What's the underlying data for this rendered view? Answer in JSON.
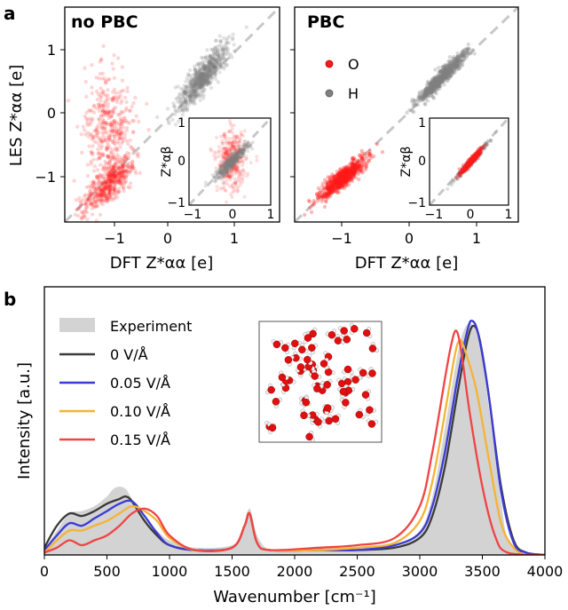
{
  "figure": {
    "panel_a_label": "a",
    "panel_b_label": "b"
  },
  "colors": {
    "O": "#ff1a1a",
    "H": "#808080",
    "diag": "#c8c8c8"
  },
  "chart_data": [
    {
      "id": "a-left",
      "type": "scatter",
      "title": "no PBC",
      "xlabel": "DFT Z*αα [e]",
      "ylabel": "LES Z*αα [e]",
      "xlim": [
        -1.6,
        1.6
      ],
      "ylim": [
        -1.6,
        1.6
      ],
      "xticks": [
        "−1",
        "0",
        "1"
      ],
      "yticks": [
        "−1",
        "0",
        "1"
      ],
      "series": [
        {
          "color": "#ff1a1a",
          "note": "O cloud: x≈-0.9 (−1.3..−0.6), y spans −1.5..0.9"
        },
        {
          "color": "#808080",
          "note": "H cloud: x 0.1..0.9, y 0.1..1.1"
        }
      ],
      "inset": {
        "xlabel": "",
        "ylabel": "Z*αβ",
        "xlim": [
          -1,
          1
        ],
        "ylim": [
          -1,
          1
        ],
        "xticks": [
          "−1",
          "0",
          "1"
        ],
        "yticks": [
          "−1",
          "0",
          "1"
        ]
      }
    },
    {
      "id": "a-right",
      "type": "scatter",
      "title": "PBC",
      "xlabel": "DFT Z*αα [e]",
      "ylabel": "",
      "xlim": [
        -1.6,
        1.6
      ],
      "ylim": [
        -1.6,
        1.6
      ],
      "xticks": [
        "−1",
        "0",
        "1"
      ],
      "legend": [
        {
          "label": "O",
          "color": "#ff1a1a"
        },
        {
          "label": "H",
          "color": "#808080"
        }
      ],
      "legend_position": "upper-left",
      "series": [
        {
          "name": "O",
          "color": "#ff1a1a",
          "note": "tight along diagonal, x −1.3..−0.6"
        },
        {
          "name": "H",
          "color": "#808080",
          "note": "tight along diagonal, x 0.2..0.9"
        }
      ],
      "inset": {
        "xlabel": "",
        "ylabel": "Z*αβ",
        "xlim": [
          -1,
          1
        ],
        "ylim": [
          -1,
          1
        ],
        "xticks": [
          "−1",
          "0",
          "1"
        ],
        "yticks": [
          "−1",
          "0",
          "1"
        ]
      }
    },
    {
      "id": "b",
      "type": "line",
      "xlabel": "Wavenumber [cm⁻¹]",
      "ylabel": "Intensity [a.u.]",
      "xlim": [
        0,
        4000
      ],
      "ylim": [
        0,
        1.1
      ],
      "xticks": [
        "0",
        "500",
        "1000",
        "1500",
        "2000",
        "2500",
        "3000",
        "3500",
        "4000"
      ],
      "legend_position": "upper-left",
      "series": [
        {
          "name": "Experiment",
          "color": "#d3d3d3",
          "style": "fill",
          "points": [
            [
              0,
              0.02
            ],
            [
              100,
              0.1
            ],
            [
              200,
              0.17
            ],
            [
              300,
              0.18
            ],
            [
              400,
              0.2
            ],
            [
              500,
              0.24
            ],
            [
              550,
              0.27
            ],
            [
              600,
              0.28
            ],
            [
              650,
              0.27
            ],
            [
              700,
              0.23
            ],
            [
              800,
              0.15
            ],
            [
              900,
              0.1
            ],
            [
              1000,
              0.06
            ],
            [
              1200,
              0.03
            ],
            [
              1500,
              0.04
            ],
            [
              1580,
              0.1
            ],
            [
              1640,
              0.19
            ],
            [
              1700,
              0.08
            ],
            [
              1800,
              0.02
            ],
            [
              2000,
              0.02
            ],
            [
              2200,
              0.03
            ],
            [
              2500,
              0.03
            ],
            [
              2800,
              0.04
            ],
            [
              3000,
              0.1
            ],
            [
              3100,
              0.24
            ],
            [
              3200,
              0.52
            ],
            [
              3300,
              0.82
            ],
            [
              3350,
              0.92
            ],
            [
              3400,
              0.95
            ],
            [
              3450,
              0.92
            ],
            [
              3500,
              0.8
            ],
            [
              3600,
              0.42
            ],
            [
              3650,
              0.22
            ],
            [
              3700,
              0.07
            ],
            [
              3800,
              0.01
            ],
            [
              4000,
              0.0
            ]
          ]
        },
        {
          "name": "0 V/Å",
          "color": "#3a3a3a",
          "points": [
            [
              0,
              0.03
            ],
            [
              100,
              0.12
            ],
            [
              200,
              0.17
            ],
            [
              300,
              0.16
            ],
            [
              400,
              0.18
            ],
            [
              500,
              0.21
            ],
            [
              600,
              0.23
            ],
            [
              650,
              0.24
            ],
            [
              700,
              0.22
            ],
            [
              800,
              0.14
            ],
            [
              900,
              0.08
            ],
            [
              1000,
              0.04
            ],
            [
              1200,
              0.02
            ],
            [
              1500,
              0.03
            ],
            [
              1600,
              0.12
            ],
            [
              1640,
              0.17
            ],
            [
              1700,
              0.05
            ],
            [
              1800,
              0.02
            ],
            [
              2200,
              0.02
            ],
            [
              2500,
              0.02
            ],
            [
              2800,
              0.03
            ],
            [
              3000,
              0.07
            ],
            [
              3100,
              0.16
            ],
            [
              3200,
              0.36
            ],
            [
              3300,
              0.66
            ],
            [
              3380,
              0.88
            ],
            [
              3430,
              0.94
            ],
            [
              3480,
              0.88
            ],
            [
              3550,
              0.66
            ],
            [
              3650,
              0.28
            ],
            [
              3750,
              0.06
            ],
            [
              3850,
              0.01
            ],
            [
              4000,
              0.0
            ]
          ]
        },
        {
          "name": "0.05 V/Å",
          "color": "#3b3bd6",
          "points": [
            [
              0,
              0.02
            ],
            [
              100,
              0.08
            ],
            [
              200,
              0.13
            ],
            [
              300,
              0.12
            ],
            [
              400,
              0.15
            ],
            [
              500,
              0.18
            ],
            [
              600,
              0.21
            ],
            [
              700,
              0.22
            ],
            [
              800,
              0.16
            ],
            [
              900,
              0.09
            ],
            [
              1000,
              0.04
            ],
            [
              1200,
              0.02
            ],
            [
              1500,
              0.03
            ],
            [
              1600,
              0.12
            ],
            [
              1640,
              0.17
            ],
            [
              1700,
              0.05
            ],
            [
              1800,
              0.02
            ],
            [
              2200,
              0.02
            ],
            [
              2500,
              0.02
            ],
            [
              2800,
              0.04
            ],
            [
              3000,
              0.09
            ],
            [
              3100,
              0.2
            ],
            [
              3200,
              0.42
            ],
            [
              3300,
              0.72
            ],
            [
              3380,
              0.92
            ],
            [
              3420,
              0.96
            ],
            [
              3470,
              0.9
            ],
            [
              3550,
              0.66
            ],
            [
              3650,
              0.26
            ],
            [
              3750,
              0.05
            ],
            [
              3850,
              0.01
            ],
            [
              4000,
              0.0
            ]
          ]
        },
        {
          "name": "0.10 V/Å",
          "color": "#f5b335",
          "points": [
            [
              0,
              0.01
            ],
            [
              100,
              0.06
            ],
            [
              200,
              0.1
            ],
            [
              300,
              0.1
            ],
            [
              400,
              0.12
            ],
            [
              500,
              0.14
            ],
            [
              600,
              0.17
            ],
            [
              700,
              0.2
            ],
            [
              800,
              0.18
            ],
            [
              900,
              0.14
            ],
            [
              1000,
              0.07
            ],
            [
              1200,
              0.02
            ],
            [
              1500,
              0.03
            ],
            [
              1600,
              0.12
            ],
            [
              1640,
              0.17
            ],
            [
              1700,
              0.05
            ],
            [
              1800,
              0.02
            ],
            [
              2200,
              0.02
            ],
            [
              2500,
              0.03
            ],
            [
              2800,
              0.05
            ],
            [
              3000,
              0.14
            ],
            [
              3100,
              0.3
            ],
            [
              3200,
              0.58
            ],
            [
              3280,
              0.82
            ],
            [
              3320,
              0.88
            ],
            [
              3360,
              0.84
            ],
            [
              3450,
              0.68
            ],
            [
              3550,
              0.4
            ],
            [
              3650,
              0.13
            ],
            [
              3750,
              0.03
            ],
            [
              3850,
              0.0
            ],
            [
              4000,
              0.0
            ]
          ]
        },
        {
          "name": "0.15 V/Å",
          "color": "#f04444",
          "points": [
            [
              0,
              0.01
            ],
            [
              100,
              0.03
            ],
            [
              200,
              0.06
            ],
            [
              300,
              0.04
            ],
            [
              400,
              0.06
            ],
            [
              500,
              0.08
            ],
            [
              600,
              0.12
            ],
            [
              700,
              0.17
            ],
            [
              800,
              0.19
            ],
            [
              900,
              0.16
            ],
            [
              1000,
              0.08
            ],
            [
              1200,
              0.02
            ],
            [
              1500,
              0.03
            ],
            [
              1600,
              0.12
            ],
            [
              1640,
              0.17
            ],
            [
              1700,
              0.05
            ],
            [
              1800,
              0.02
            ],
            [
              2200,
              0.03
            ],
            [
              2500,
              0.04
            ],
            [
              2800,
              0.07
            ],
            [
              3000,
              0.2
            ],
            [
              3100,
              0.42
            ],
            [
              3200,
              0.72
            ],
            [
              3250,
              0.86
            ],
            [
              3290,
              0.92
            ],
            [
              3330,
              0.84
            ],
            [
              3400,
              0.58
            ],
            [
              3500,
              0.28
            ],
            [
              3600,
              0.08
            ],
            [
              3700,
              0.01
            ],
            [
              4000,
              0.0
            ]
          ]
        }
      ]
    }
  ]
}
